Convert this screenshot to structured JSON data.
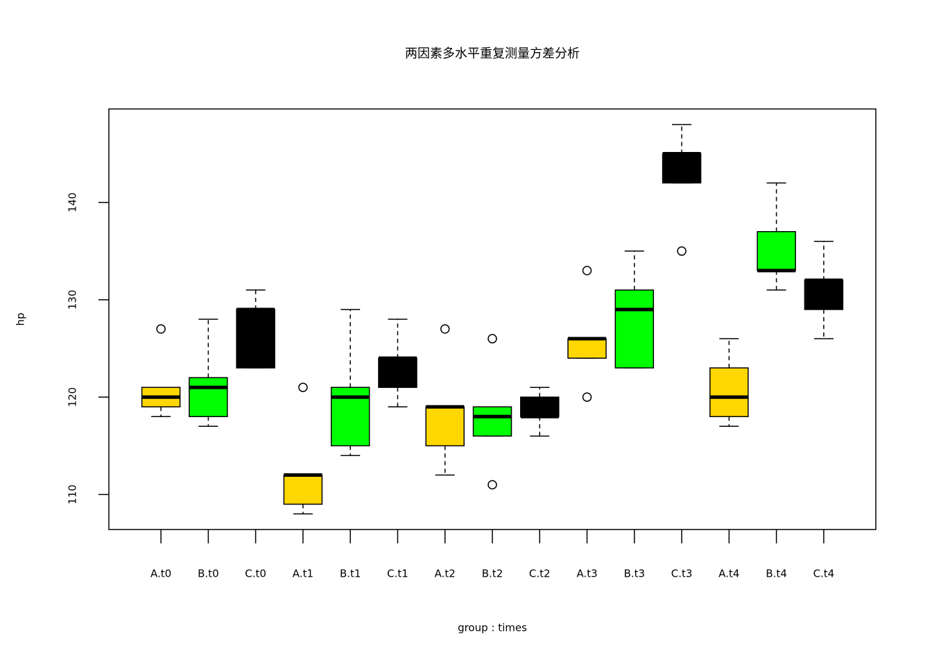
{
  "chart_data": {
    "type": "box",
    "title": "两因素多水平重复测量方差分析",
    "xlabel": "group : times",
    "ylabel": "hp",
    "categories": [
      "A.t0",
      "B.t0",
      "C.t0",
      "A.t1",
      "B.t1",
      "C.t1",
      "A.t2",
      "B.t2",
      "C.t2",
      "A.t3",
      "B.t3",
      "C.t3",
      "A.t4",
      "B.t4",
      "C.t4"
    ],
    "colors": [
      "#FFD700",
      "#00FF00",
      "#000000",
      "#FFD700",
      "#00FF00",
      "#000000",
      "#FFD700",
      "#00FF00",
      "#000000",
      "#FFD700",
      "#00FF00",
      "#000000",
      "#FFD700",
      "#00FF00",
      "#000000"
    ],
    "boxes": [
      {
        "min": 118,
        "q1": 119,
        "median": 120,
        "q3": 121,
        "max": 121,
        "outliers": [
          127
        ]
      },
      {
        "min": 117,
        "q1": 118,
        "median": 121,
        "q3": 122,
        "max": 128,
        "outliers": []
      },
      {
        "min": 123,
        "q1": 123,
        "median": 129,
        "q3": 129,
        "max": 131,
        "outliers": []
      },
      {
        "min": 108,
        "q1": 109,
        "median": 112,
        "q3": 112,
        "max": 112,
        "outliers": [
          121
        ]
      },
      {
        "min": 114,
        "q1": 115,
        "median": 120,
        "q3": 121,
        "max": 129,
        "outliers": []
      },
      {
        "min": 119,
        "q1": 121,
        "median": 124,
        "q3": 124,
        "max": 128,
        "outliers": []
      },
      {
        "min": 112,
        "q1": 115,
        "median": 119,
        "q3": 119,
        "max": 119,
        "outliers": [
          127
        ]
      },
      {
        "min": 116,
        "q1": 116,
        "median": 118,
        "q3": 119,
        "max": 119,
        "outliers": [
          126,
          111
        ]
      },
      {
        "min": 116,
        "q1": 118,
        "median": 118,
        "q3": 120,
        "max": 121,
        "outliers": []
      },
      {
        "min": 124,
        "q1": 124,
        "median": 126,
        "q3": 126,
        "max": 126,
        "outliers": [
          133,
          120
        ]
      },
      {
        "min": 123,
        "q1": 123,
        "median": 129,
        "q3": 131,
        "max": 135,
        "outliers": []
      },
      {
        "min": 142,
        "q1": 142,
        "median": 145,
        "q3": 145,
        "max": 148,
        "outliers": [
          135
        ]
      },
      {
        "min": 117,
        "q1": 118,
        "median": 120,
        "q3": 123,
        "max": 126,
        "outliers": []
      },
      {
        "min": 131,
        "q1": 133,
        "median": 133,
        "q3": 137,
        "max": 142,
        "outliers": []
      },
      {
        "min": 126,
        "q1": 129,
        "median": 132,
        "q3": 132,
        "max": 136,
        "outliers": []
      }
    ],
    "ylim": [
      106.4,
      149.6
    ],
    "yticks": [
      110,
      120,
      130,
      140
    ]
  }
}
